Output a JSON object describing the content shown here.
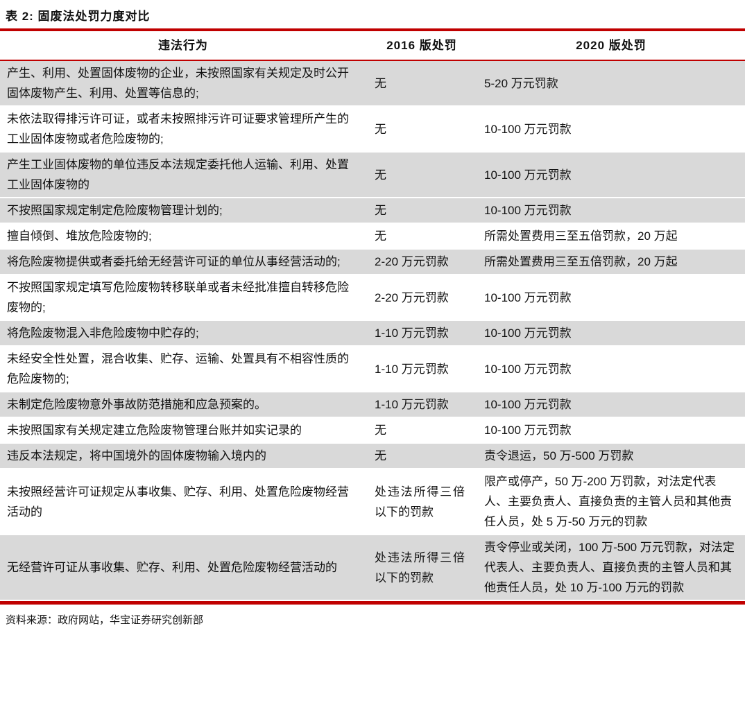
{
  "title": "表 2:  固废法处罚力度对比",
  "source": "资料来源：政府网站，华宝证券研究创新部",
  "colors": {
    "accent_red": "#c00000",
    "row_gray": "#d9d9d9",
    "text": "#111111"
  },
  "table": {
    "columns": [
      "违法行为",
      "2016 版处罚",
      "2020 版处罚"
    ],
    "rows": [
      {
        "behavior": "产生、利用、处置固体废物的企业，未按照国家有关规定及时公开固体废物产生、利用、处置等信息的;",
        "p2016": "无",
        "p2020": "5-20 万元罚款",
        "shaded": true
      },
      {
        "behavior": "未依法取得排污许可证，或者未按照排污许可证要求管理所产生的工业固体废物或者危险废物的;",
        "p2016": "无",
        "p2020": "10-100 万元罚款",
        "shaded": false
      },
      {
        "behavior": "产生工业固体废物的单位违反本法规定委托他人运输、利用、处置工业固体废物的",
        "p2016": "无",
        "p2020": "10-100 万元罚款",
        "shaded": true
      },
      {
        "behavior": "不按照国家规定制定危险废物管理计划的;",
        "p2016": "无",
        "p2020": "10-100 万元罚款",
        "shaded": true
      },
      {
        "behavior": "擅自倾倒、堆放危险废物的;",
        "p2016": "无",
        "p2020": "所需处置费用三至五倍罚款，20 万起",
        "shaded": false
      },
      {
        "behavior": "将危险废物提供或者委托给无经营许可证的单位从事经营活动的;",
        "p2016": "2-20 万元罚款",
        "p2020": "所需处置费用三至五倍罚款，20 万起",
        "shaded": true
      },
      {
        "behavior": "不按照国家规定填写危险废物转移联单或者未经批准擅自转移危险废物的;",
        "p2016": "2-20 万元罚款",
        "p2020": "10-100 万元罚款",
        "shaded": false
      },
      {
        "behavior": "将危险废物混入非危险废物中贮存的;",
        "p2016": "1-10 万元罚款",
        "p2020": "10-100 万元罚款",
        "shaded": true
      },
      {
        "behavior": "未经安全性处置，混合收集、贮存、运输、处置具有不相容性质的危险废物的;",
        "p2016": "1-10 万元罚款",
        "p2020": "10-100 万元罚款",
        "shaded": false
      },
      {
        "behavior": "未制定危险废物意外事故防范措施和应急预案的。",
        "p2016": "1-10 万元罚款",
        "p2020": "10-100 万元罚款",
        "shaded": true
      },
      {
        "behavior": "未按照国家有关规定建立危险废物管理台账并如实记录的",
        "p2016": "无",
        "p2020": "10-100 万元罚款",
        "shaded": false
      },
      {
        "behavior": "违反本法规定，将中国境外的固体废物输入境内的",
        "p2016": "无",
        "p2020": "责令退运，50 万-500 万罚款",
        "shaded": true
      },
      {
        "behavior": "未按照经营许可证规定从事收集、贮存、利用、处置危险废物经营活动的",
        "p2016": "处违法所得三倍以下的罚款",
        "p2020": "限产或停产，50 万-200 万罚款，对法定代表人、主要负责人、直接负责的主管人员和其他责任人员，处 5 万-50 万元的罚款",
        "shaded": false
      },
      {
        "behavior": "无经营许可证从事收集、贮存、利用、处置危险废物经营活动的",
        "p2016": "处违法所得三倍以下的罚款",
        "p2020": "责令停业或关闭，100 万-500 万元罚款，对法定代表人、主要负责人、直接负责的主管人员和其他责任人员，处 10 万-100 万元的罚款",
        "shaded": true
      }
    ]
  }
}
